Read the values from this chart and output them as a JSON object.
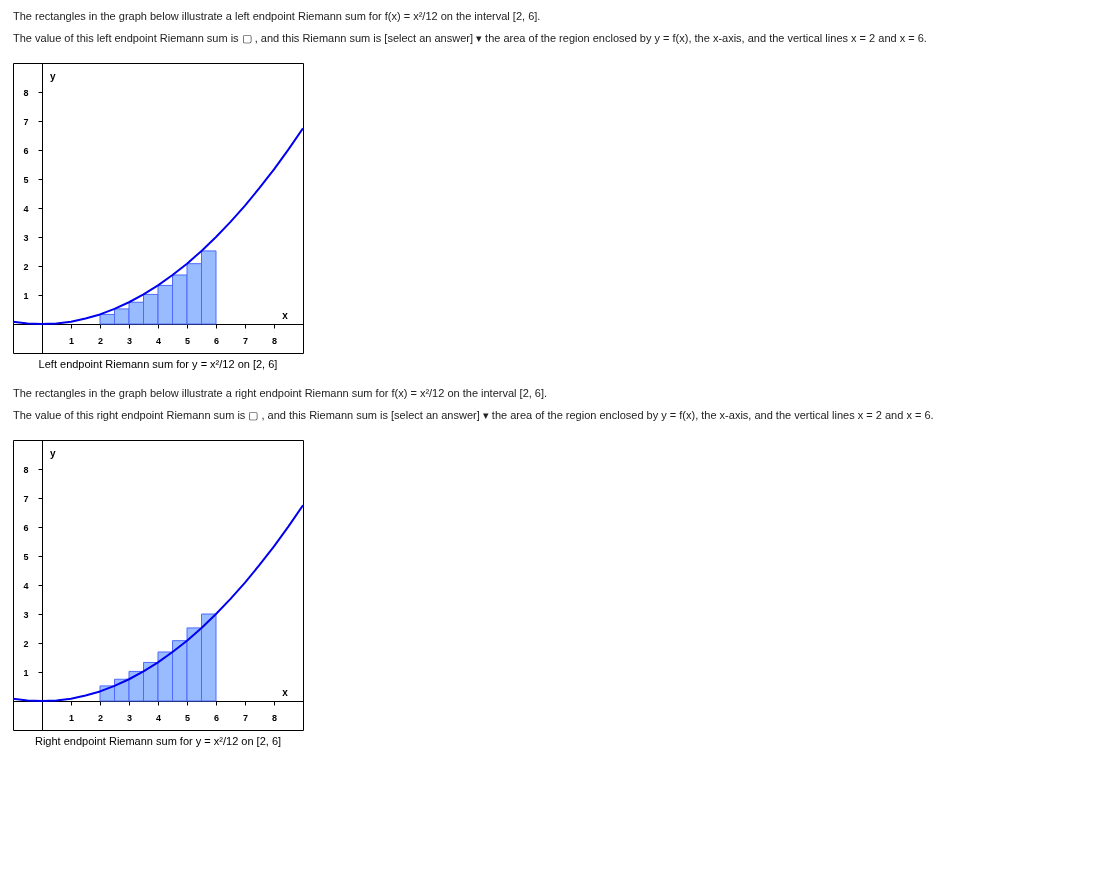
{
  "chart_data": [
    {
      "type": "bar",
      "title": "Left endpoint Riemann sum for y = x²/12 on [2, 6]",
      "xlabel": "x",
      "ylabel": "y",
      "annotations": [
        "The rectangles in the graph below illustrate a left endpoint Riemann sum for f(x) = x²/12 on the interval [2, 6].",
        "The value of this left endpoint Riemann sum is ▢ , and this Riemann sum is [select an answer] ▾ the area of the region enclosed by y = f(x), the x-axis, and the vertical lines x = 2 and x = 6."
      ],
      "xlim": [
        -1,
        9
      ],
      "ylim": [
        -1,
        9
      ],
      "xticks": [
        1,
        2,
        3,
        4,
        5,
        6,
        7,
        8
      ],
      "yticks": [
        1,
        2,
        3,
        4,
        5,
        6,
        7,
        8
      ],
      "grid": false,
      "series": [
        {
          "color": "#99bbff",
          "x": [
            2.25,
            2.75,
            3.25,
            3.75,
            4.25,
            4.75,
            5.25,
            5.75
          ],
          "values": [
            0.33,
            0.52,
            0.75,
            1.02,
            1.33,
            1.69,
            2.08,
            2.52
          ]
        },
        {
          "type": "line",
          "color": "#0000ee",
          "x": [
            -1,
            -0.5,
            0,
            0.5,
            1,
            1.5,
            2,
            2.5,
            3,
            3.5,
            4,
            4.5,
            5,
            5.5,
            6,
            6.5,
            7,
            7.5,
            8,
            8.5,
            9
          ],
          "values": [
            0.08,
            0.02,
            0,
            0.02,
            0.08,
            0.19,
            0.33,
            0.52,
            0.75,
            1.02,
            1.33,
            1.69,
            2.08,
            2.52,
            3,
            3.52,
            4.08,
            4.69,
            5.33,
            6.02,
            6.75
          ]
        }
      ]
    },
    {
      "type": "bar",
      "title": "Right endpoint Riemann sum for y = x²/12 on [2, 6]",
      "xlabel": "x",
      "ylabel": "y",
      "annotations": [
        "The rectangles in the graph below illustrate a right endpoint Riemann sum for f(x) = x²/12 on the interval [2, 6].",
        "The value of this right endpoint Riemann sum is ▢ , and this Riemann sum is [select an answer] ▾ the area of the region enclosed by y = f(x), the x-axis, and the vertical lines x = 2 and x = 6."
      ],
      "xlim": [
        -1,
        9
      ],
      "ylim": [
        -1,
        9
      ],
      "xticks": [
        1,
        2,
        3,
        4,
        5,
        6,
        7,
        8
      ],
      "yticks": [
        1,
        2,
        3,
        4,
        5,
        6,
        7,
        8
      ],
      "grid": false,
      "series": [
        {
          "color": "#99bbff",
          "x": [
            2.25,
            2.75,
            3.25,
            3.75,
            4.25,
            4.75,
            5.25,
            5.75
          ],
          "values": [
            0.52,
            0.75,
            1.02,
            1.33,
            1.69,
            2.08,
            2.52,
            3
          ]
        },
        {
          "type": "line",
          "color": "#0000ee",
          "x": [
            -1,
            -0.5,
            0,
            0.5,
            1,
            1.5,
            2,
            2.5,
            3,
            3.5,
            4,
            4.5,
            5,
            5.5,
            6,
            6.5,
            7,
            7.5,
            8,
            8.5,
            9
          ],
          "values": [
            0.08,
            0.02,
            0,
            0.02,
            0.08,
            0.19,
            0.33,
            0.52,
            0.75,
            1.02,
            1.33,
            1.69,
            2.08,
            2.52,
            3,
            3.52,
            4.08,
            4.69,
            5.33,
            6.02,
            6.75
          ]
        }
      ]
    }
  ]
}
